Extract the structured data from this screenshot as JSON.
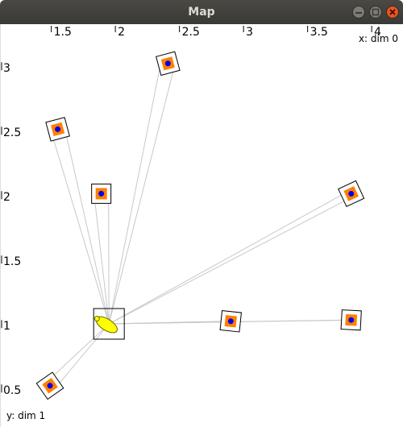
{
  "window": {
    "title": "Map"
  },
  "axes": {
    "x_label": "x: dim 0",
    "y_label": "y: dim 1",
    "x_ticks": [
      "1.5",
      "2",
      "2.5",
      "3",
      "3.5",
      "4"
    ],
    "y_ticks": [
      "3",
      "2.5",
      "2",
      "1.5",
      "1",
      "0.5"
    ]
  },
  "chart_data": {
    "type": "scatter",
    "xlabel": "x: dim 0",
    "ylabel": "y: dim 1",
    "xlim": [
      1.15,
      4.1
    ],
    "ylim": [
      0.42,
      3.15
    ],
    "robot": {
      "x": 1.95,
      "y": 1.02,
      "heading_deg": 212
    },
    "landmarks": [
      {
        "x": 2.41,
        "y": 3.04,
        "rot": -15
      },
      {
        "x": 1.55,
        "y": 2.53,
        "rot": -15
      },
      {
        "x": 1.89,
        "y": 2.03,
        "rot": 0
      },
      {
        "x": 3.84,
        "y": 2.03,
        "rot": -25
      },
      {
        "x": 2.9,
        "y": 1.04,
        "rot": 6
      },
      {
        "x": 3.84,
        "y": 1.05,
        "rot": 3
      },
      {
        "x": 1.49,
        "y": 0.54,
        "rot": -35
      }
    ],
    "colors": {
      "landmark_fill": "#ff7f00",
      "landmark_dot": "#0000ee",
      "robot": "#ffff00",
      "rays": "#c8c8c8"
    }
  }
}
